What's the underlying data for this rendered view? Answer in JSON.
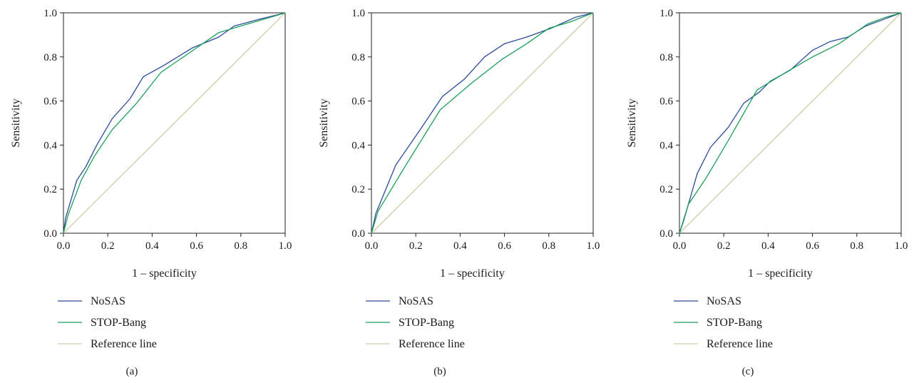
{
  "figure": {
    "panels": [
      {
        "caption": "(a)"
      },
      {
        "caption": "(b)"
      },
      {
        "caption": "(c)"
      }
    ]
  },
  "chart_data": [
    {
      "type": "line",
      "caption": "(a)",
      "xlabel": "1 – specificity",
      "ylabel": "Sensitivity",
      "xlim": [
        0,
        1
      ],
      "ylim": [
        0,
        1
      ],
      "xticks": [
        "0.0",
        "0.2",
        "0.4",
        "0.6",
        "0.8",
        "1.0"
      ],
      "yticks": [
        "0.0",
        "0.2",
        "0.4",
        "0.6",
        "0.8",
        "1.0"
      ],
      "legend_position": "below",
      "series": [
        {
          "name": "NoSAS",
          "color": "#2b4a9a",
          "x": [
            0,
            0.01,
            0.06,
            0.1,
            0.15,
            0.22,
            0.3,
            0.36,
            0.45,
            0.58,
            0.7,
            0.77,
            0.88,
            1.0
          ],
          "y": [
            0,
            0.07,
            0.24,
            0.3,
            0.4,
            0.52,
            0.61,
            0.71,
            0.76,
            0.84,
            0.89,
            0.94,
            0.97,
            1.0
          ]
        },
        {
          "name": "STOP-Bang",
          "color": "#1aa05a",
          "x": [
            0,
            0.02,
            0.08,
            0.14,
            0.22,
            0.33,
            0.44,
            0.57,
            0.7,
            0.8,
            0.9,
            1.0
          ],
          "y": [
            0,
            0.08,
            0.24,
            0.35,
            0.47,
            0.59,
            0.73,
            0.82,
            0.91,
            0.94,
            0.97,
            1.0
          ]
        },
        {
          "name": "Reference line",
          "color": "#c9cfa6",
          "x": [
            0,
            1
          ],
          "y": [
            0,
            1
          ]
        }
      ]
    },
    {
      "type": "line",
      "caption": "(b)",
      "xlabel": "1 – specificity",
      "ylabel": "Sensitivity",
      "xlim": [
        0,
        1
      ],
      "ylim": [
        0,
        1
      ],
      "xticks": [
        "0.0",
        "0.2",
        "0.4",
        "0.6",
        "0.8",
        "1.0"
      ],
      "yticks": [
        "0.0",
        "0.2",
        "0.4",
        "0.6",
        "0.8",
        "1.0"
      ],
      "legend_position": "below",
      "series": [
        {
          "name": "NoSAS",
          "color": "#2b4a9a",
          "x": [
            0,
            0.02,
            0.11,
            0.22,
            0.32,
            0.42,
            0.51,
            0.6,
            0.7,
            0.81,
            0.92,
            1.0
          ],
          "y": [
            0,
            0.09,
            0.31,
            0.47,
            0.62,
            0.7,
            0.8,
            0.86,
            0.89,
            0.93,
            0.98,
            1.0
          ]
        },
        {
          "name": "STOP-Bang",
          "color": "#1aa05a",
          "x": [
            0,
            0.03,
            0.15,
            0.31,
            0.45,
            0.59,
            0.7,
            0.8,
            0.9,
            1.0
          ],
          "y": [
            0,
            0.1,
            0.3,
            0.56,
            0.68,
            0.79,
            0.86,
            0.93,
            0.96,
            1.0
          ]
        },
        {
          "name": "Reference line",
          "color": "#c9cfa6",
          "x": [
            0,
            1
          ],
          "y": [
            0,
            1
          ]
        }
      ]
    },
    {
      "type": "line",
      "caption": "(c)",
      "xlabel": "1 – specificity",
      "ylabel": "Sensitivity",
      "xlim": [
        0,
        1
      ],
      "ylim": [
        0,
        1
      ],
      "xticks": [
        "0.0",
        "0.2",
        "0.4",
        "0.6",
        "0.8",
        "1.0"
      ],
      "yticks": [
        "0.0",
        "0.2",
        "0.4",
        "0.6",
        "0.8",
        "1.0"
      ],
      "legend_position": "below",
      "series": [
        {
          "name": "NoSAS",
          "color": "#2b4a9a",
          "x": [
            0,
            0.02,
            0.08,
            0.14,
            0.22,
            0.29,
            0.36,
            0.41,
            0.5,
            0.6,
            0.68,
            0.76,
            0.84,
            0.92,
            1.0
          ],
          "y": [
            0,
            0.06,
            0.27,
            0.39,
            0.48,
            0.59,
            0.64,
            0.69,
            0.74,
            0.83,
            0.87,
            0.89,
            0.94,
            0.97,
            1.0
          ]
        },
        {
          "name": "STOP-Bang",
          "color": "#1aa05a",
          "x": [
            0,
            0.04,
            0.12,
            0.22,
            0.35,
            0.48,
            0.6,
            0.72,
            0.85,
            0.93,
            1.0
          ],
          "y": [
            0,
            0.13,
            0.25,
            0.42,
            0.65,
            0.73,
            0.8,
            0.86,
            0.95,
            0.98,
            1.0
          ]
        },
        {
          "name": "Reference line",
          "color": "#c9cfa6",
          "x": [
            0,
            1
          ],
          "y": [
            0,
            1
          ]
        }
      ]
    }
  ]
}
